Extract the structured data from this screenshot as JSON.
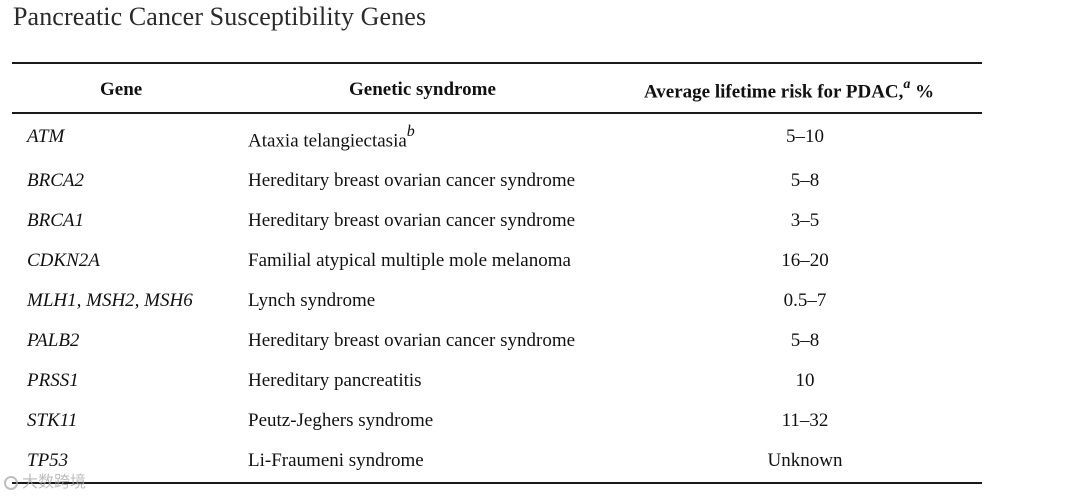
{
  "title": "Pancreatic Cancer Susceptibility Genes",
  "headers": {
    "gene": "Gene",
    "syndrome": "Genetic syndrome",
    "risk": "Average lifetime risk for PDAC,",
    "risk_sup": "a",
    "risk_unit": " %"
  },
  "rows": [
    {
      "gene": "ATM",
      "syndrome": "Ataxia telangiectasia",
      "syndrome_sup": "b",
      "risk": "5–10"
    },
    {
      "gene": "BRCA2",
      "syndrome": "Hereditary breast ovarian cancer syndrome",
      "syndrome_sup": "",
      "risk": "5–8"
    },
    {
      "gene": "BRCA1",
      "syndrome": "Hereditary breast ovarian cancer syndrome",
      "syndrome_sup": "",
      "risk": "3–5"
    },
    {
      "gene": "CDKN2A",
      "syndrome": "Familial atypical multiple mole melanoma",
      "syndrome_sup": "",
      "risk": "16–20"
    },
    {
      "gene": "MLH1, MSH2, MSH6",
      "syndrome": "Lynch syndrome",
      "syndrome_sup": "",
      "risk": "0.5–7"
    },
    {
      "gene": "PALB2",
      "syndrome": "Hereditary breast ovarian cancer syndrome",
      "syndrome_sup": "",
      "risk": "5–8"
    },
    {
      "gene": "PRSS1",
      "syndrome": "Hereditary pancreatitis",
      "syndrome_sup": "",
      "risk": "10"
    },
    {
      "gene": "STK11",
      "syndrome": "Peutz-Jeghers syndrome",
      "syndrome_sup": "",
      "risk": "11–32"
    },
    {
      "gene": "TP53",
      "syndrome": "Li-Fraumeni syndrome",
      "syndrome_sup": "",
      "risk": "Unknown"
    }
  ],
  "watermark": "大数跨境"
}
